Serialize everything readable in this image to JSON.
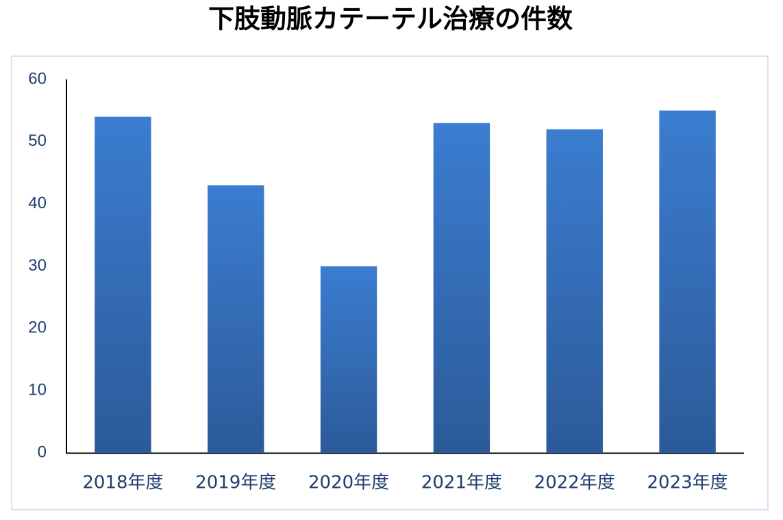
{
  "chart_data": {
    "type": "bar",
    "title": "下肢動脈カテーテル治療の件数",
    "categories": [
      "2018年度",
      "2019年度",
      "2020年度",
      "2021年度",
      "2022年度",
      "2023年度"
    ],
    "values": [
      54,
      43,
      30,
      53,
      52,
      55
    ],
    "color": "#3470bd",
    "ylim": [
      0,
      60
    ],
    "yticks": [
      0,
      10,
      20,
      30,
      40,
      50,
      60
    ],
    "grid": false
  }
}
